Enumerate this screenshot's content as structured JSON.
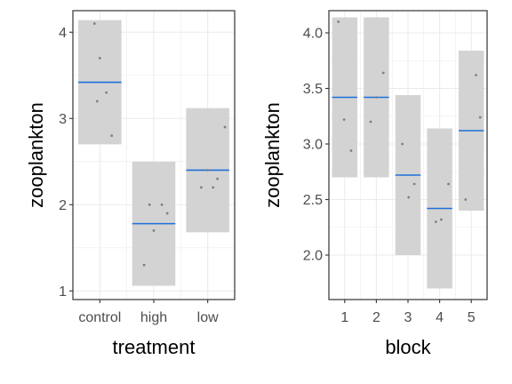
{
  "chart_data": [
    {
      "type": "crossbar",
      "xlabel": "treatment",
      "ylabel": "zooplankton",
      "categories": [
        "control",
        "high",
        "low"
      ],
      "ylim": [
        0.9,
        4.25
      ],
      "yticks": [
        1,
        2,
        3,
        4
      ],
      "ytick_labels": [
        "1",
        "2",
        "3",
        "4"
      ],
      "intervals": [
        {
          "category": "control",
          "mean": 3.42,
          "lower": 2.7,
          "upper": 4.14
        },
        {
          "category": "high",
          "mean": 1.78,
          "lower": 1.06,
          "upper": 2.5
        },
        {
          "category": "low",
          "mean": 2.4,
          "lower": 1.68,
          "upper": 3.12
        }
      ],
      "points": [
        {
          "x": "control",
          "x_jitter": -0.1,
          "y": 4.1
        },
        {
          "x": "control",
          "x_jitter": 0.0,
          "y": 3.7
        },
        {
          "x": "control",
          "x_jitter": 0.12,
          "y": 3.3
        },
        {
          "x": "control",
          "x_jitter": -0.05,
          "y": 3.2
        },
        {
          "x": "control",
          "x_jitter": 0.22,
          "y": 2.8
        },
        {
          "x": "high",
          "x_jitter": -0.18,
          "y": 1.3
        },
        {
          "x": "high",
          "x_jitter": -0.08,
          "y": 2.0
        },
        {
          "x": "high",
          "x_jitter": 0.15,
          "y": 2.0
        },
        {
          "x": "high",
          "x_jitter": 0.25,
          "y": 1.9
        },
        {
          "x": "high",
          "x_jitter": 0.0,
          "y": 1.7
        },
        {
          "x": "low",
          "x_jitter": -0.12,
          "y": 2.2
        },
        {
          "x": "low",
          "x_jitter": 0.0,
          "y": 2.4
        },
        {
          "x": "low",
          "x_jitter": 0.1,
          "y": 2.2
        },
        {
          "x": "low",
          "x_jitter": 0.18,
          "y": 2.3
        },
        {
          "x": "low",
          "x_jitter": 0.32,
          "y": 2.9
        }
      ],
      "colors": {
        "interval_fill": "#d3d3d3",
        "mean_line": "#1e6fd9",
        "point": "#7f7f7f",
        "grid": "#ebebeb"
      }
    },
    {
      "type": "crossbar",
      "xlabel": "block",
      "ylabel": "zooplankton",
      "categories": [
        "1",
        "2",
        "3",
        "4",
        "5"
      ],
      "ylim": [
        1.6,
        4.2
      ],
      "yticks": [
        2.0,
        2.5,
        3.0,
        3.5,
        4.0
      ],
      "ytick_labels": [
        "2.0",
        "2.5",
        "3.0",
        "3.5",
        "4.0"
      ],
      "intervals": [
        {
          "category": "1",
          "mean": 3.42,
          "lower": 2.7,
          "upper": 4.14
        },
        {
          "category": "2",
          "mean": 3.42,
          "lower": 2.7,
          "upper": 4.14
        },
        {
          "category": "3",
          "mean": 2.72,
          "lower": 2.0,
          "upper": 3.44
        },
        {
          "category": "4",
          "mean": 2.42,
          "lower": 1.7,
          "upper": 3.14
        },
        {
          "category": "5",
          "mean": 3.12,
          "lower": 2.4,
          "upper": 3.84
        }
      ],
      "points": [
        {
          "x": "1",
          "x_jitter": -0.2,
          "y": 4.1
        },
        {
          "x": "1",
          "x_jitter": -0.02,
          "y": 3.22
        },
        {
          "x": "1",
          "x_jitter": 0.2,
          "y": 2.94
        },
        {
          "x": "2",
          "x_jitter": -0.18,
          "y": 3.2
        },
        {
          "x": "2",
          "x_jitter": 0.0,
          "y": 3.42
        },
        {
          "x": "2",
          "x_jitter": 0.22,
          "y": 3.64
        },
        {
          "x": "3",
          "x_jitter": -0.18,
          "y": 3.0
        },
        {
          "x": "3",
          "x_jitter": 0.02,
          "y": 2.52
        },
        {
          "x": "3",
          "x_jitter": 0.2,
          "y": 2.64
        },
        {
          "x": "4",
          "x_jitter": -0.12,
          "y": 2.3
        },
        {
          "x": "4",
          "x_jitter": 0.05,
          "y": 2.32
        },
        {
          "x": "4",
          "x_jitter": 0.28,
          "y": 2.64
        },
        {
          "x": "5",
          "x_jitter": -0.18,
          "y": 2.5
        },
        {
          "x": "5",
          "x_jitter": 0.15,
          "y": 3.62
        },
        {
          "x": "5",
          "x_jitter": 0.28,
          "y": 3.24
        }
      ],
      "colors": {
        "interval_fill": "#d3d3d3",
        "mean_line": "#1e6fd9",
        "point": "#7f7f7f",
        "grid": "#ebebeb"
      }
    }
  ]
}
